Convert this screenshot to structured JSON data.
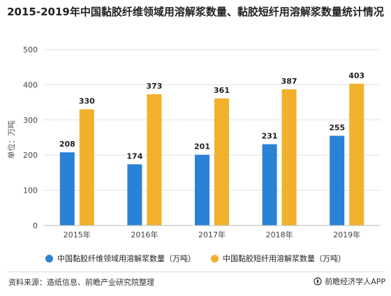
{
  "chart_data": {
    "type": "bar",
    "title": "2015-2019年中国黏胶纤维领域用溶解浆数量、黏胶短纤用溶解浆数量统计情况",
    "xlabel": "",
    "ylabel": "单位：万吨",
    "ylim": [
      0,
      500
    ],
    "yticks": [
      0,
      100,
      200,
      300,
      400,
      500
    ],
    "grid": true,
    "legend_position": "bottom",
    "categories": [
      "2015年",
      "2016年",
      "2017年",
      "2018年",
      "2019年"
    ],
    "series": [
      {
        "name": "中国黏胶纤维领域用溶解浆数量（万吨）",
        "color": "#2a82d6",
        "values": [
          208,
          174,
          201,
          231,
          255
        ]
      },
      {
        "name": "中国黏胶短纤用溶解浆数量（万吨）",
        "color": "#f2b12c",
        "values": [
          330,
          373,
          361,
          387,
          403
        ]
      }
    ]
  },
  "footer": {
    "source": "资料来源：造纸信息、前瞻产业研究院整理",
    "brand": "前瞻经济学人APP"
  },
  "icons": {
    "brand_logo": "compass-logo-icon"
  }
}
